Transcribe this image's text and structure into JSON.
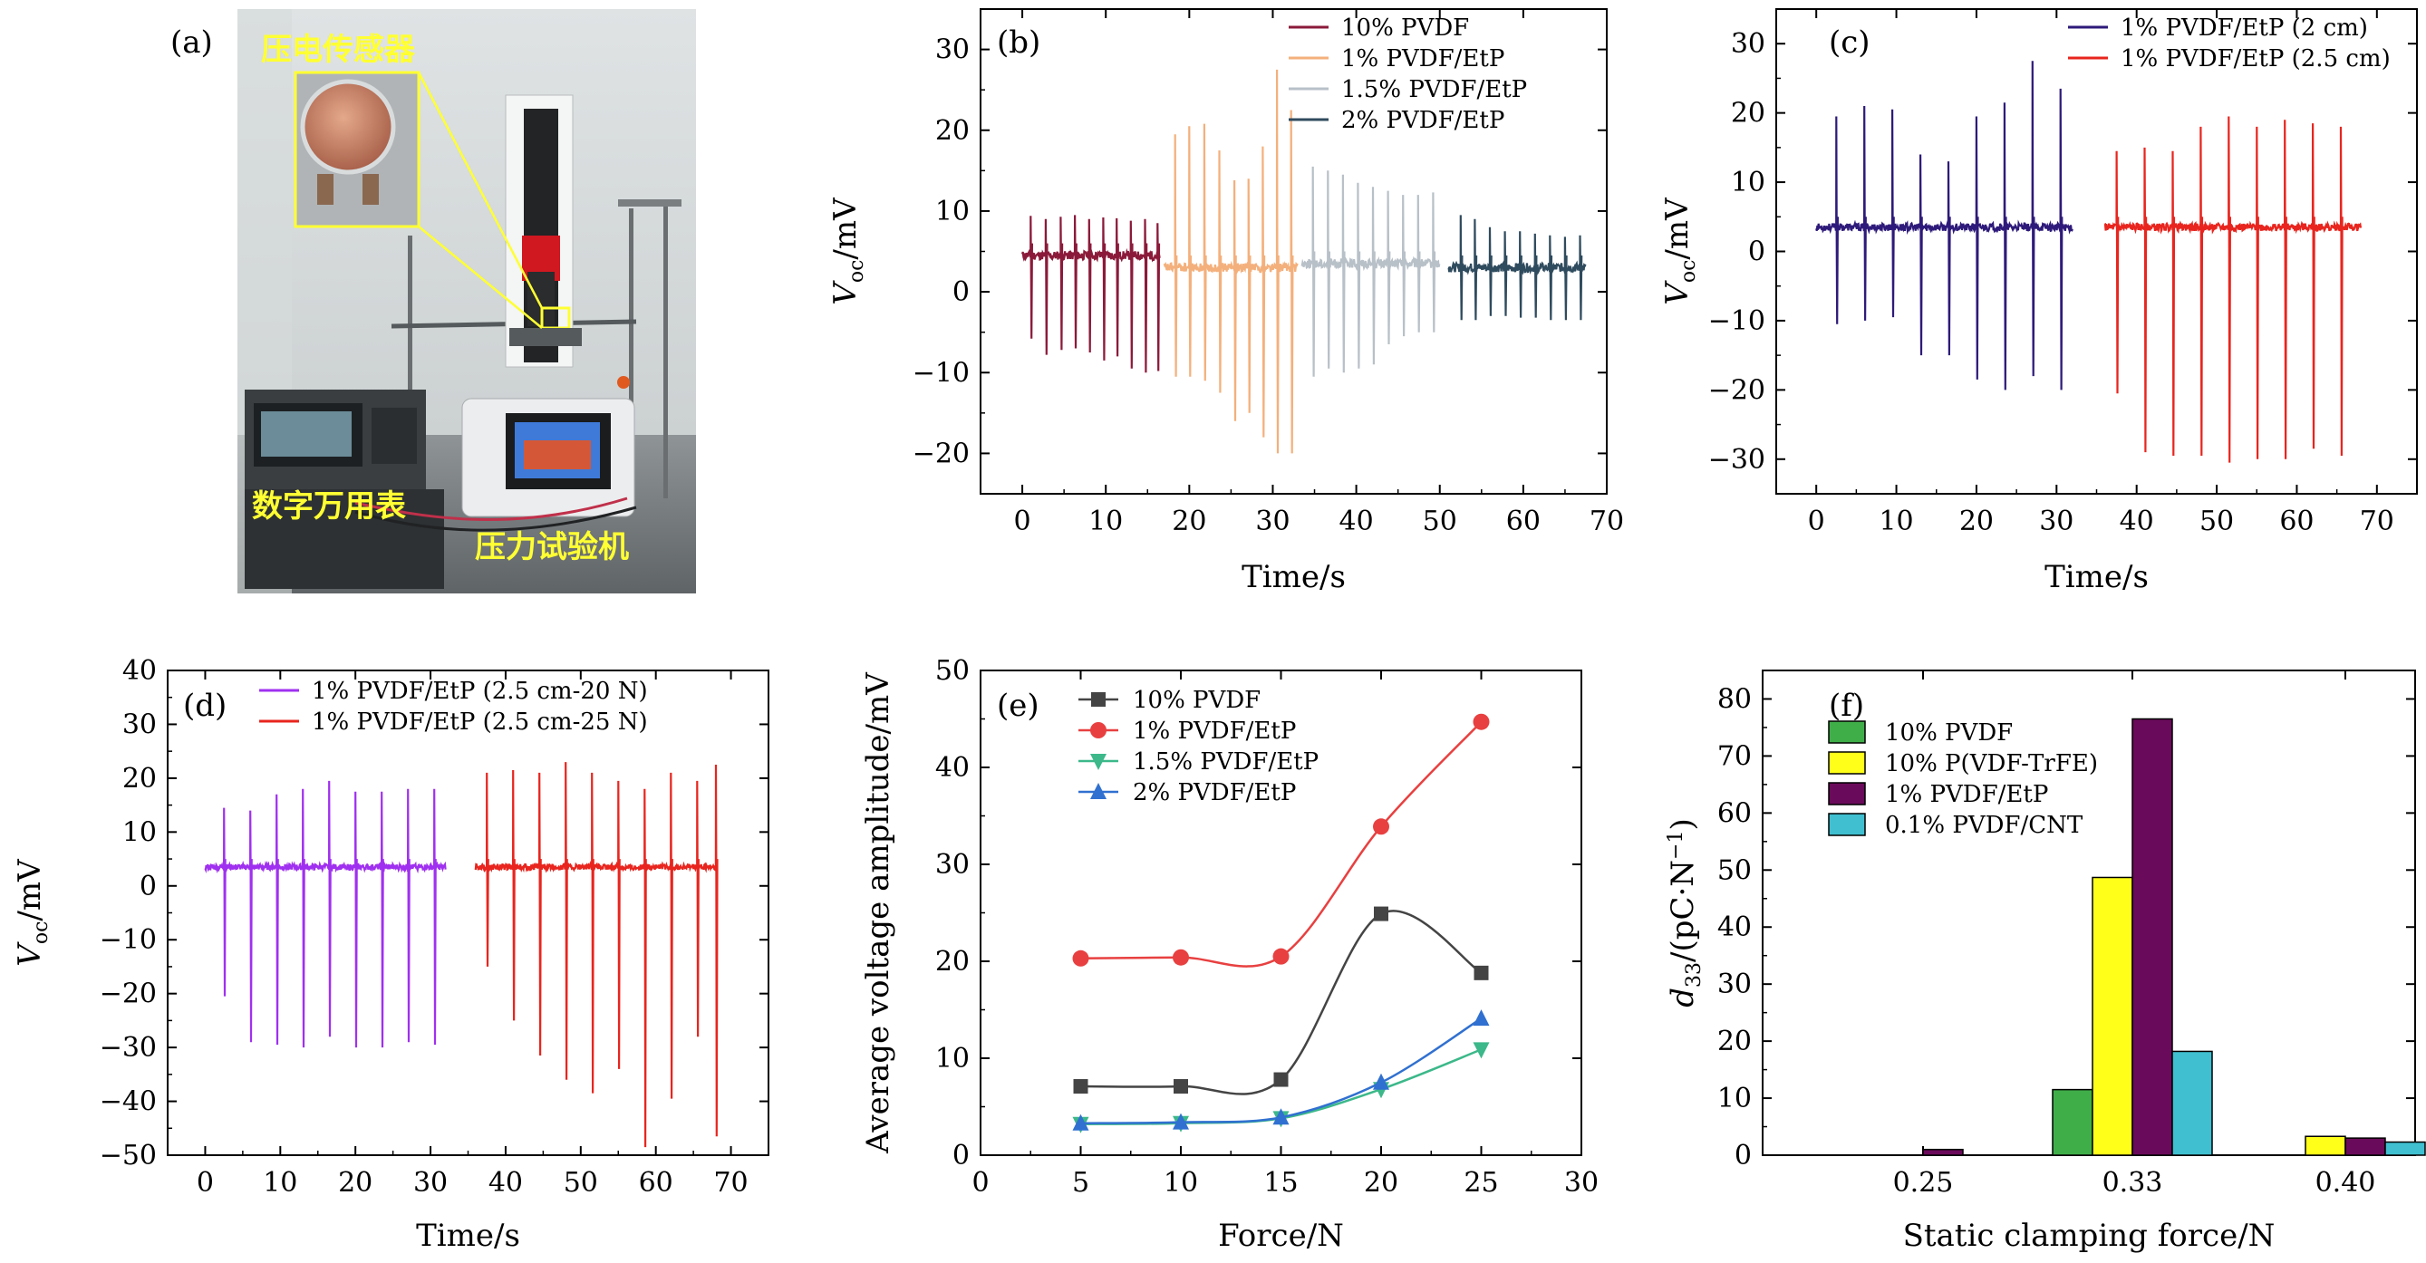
{
  "panel_a": {
    "panel_label": "(a)",
    "photo_labels": {
      "sensor": "压电传感器",
      "multimeter": "数字万用表",
      "tester": "压力试验机"
    }
  },
  "chart_data": [
    {
      "panel": "(b)",
      "type": "line",
      "xlabel": "Time/s",
      "ylabel": "V_oc/mV",
      "xlim": [
        -5,
        70
      ],
      "ylim": [
        -25,
        35
      ],
      "xticks": [
        0,
        10,
        20,
        30,
        40,
        50,
        60,
        70
      ],
      "yticks": [
        -20,
        -10,
        0,
        10,
        20,
        30
      ],
      "legend_position": "top-right",
      "series": [
        {
          "name": "10% PVDF",
          "color": "#8b1a3a",
          "x_range": [
            0,
            16.5
          ],
          "baseline": 4.5,
          "peaks": [
            {
              "t": 1.0,
              "max": 9.4,
              "min": -5.8
            },
            {
              "t": 2.8,
              "max": 9.0,
              "min": -7.8
            },
            {
              "t": 4.6,
              "max": 9.3,
              "min": -7.2
            },
            {
              "t": 6.3,
              "max": 9.5,
              "min": -7.0
            },
            {
              "t": 8.0,
              "max": 9.0,
              "min": -7.5
            },
            {
              "t": 9.7,
              "max": 9.2,
              "min": -8.5
            },
            {
              "t": 11.3,
              "max": 9.1,
              "min": -8.0
            },
            {
              "t": 13.0,
              "max": 8.8,
              "min": -9.5
            },
            {
              "t": 14.7,
              "max": 9.0,
              "min": -10.0
            },
            {
              "t": 16.2,
              "max": 8.5,
              "min": -9.8
            }
          ]
        },
        {
          "name": "1% PVDF/EtP",
          "color": "#f4b07c",
          "x_range": [
            17,
            33
          ],
          "baseline": 3.0,
          "peaks": [
            {
              "t": 18.3,
              "max": 19.5,
              "min": -10.5
            },
            {
              "t": 20.0,
              "max": 20.5,
              "min": -10.5
            },
            {
              "t": 21.8,
              "max": 20.8,
              "min": -11.0
            },
            {
              "t": 23.6,
              "max": 17.5,
              "min": -12.5
            },
            {
              "t": 25.4,
              "max": 13.8,
              "min": -16.0
            },
            {
              "t": 27.1,
              "max": 14.0,
              "min": -15.0
            },
            {
              "t": 28.8,
              "max": 18.0,
              "min": -18.0
            },
            {
              "t": 30.5,
              "max": 27.5,
              "min": -20.0
            },
            {
              "t": 32.2,
              "max": 22.5,
              "min": -20.0
            }
          ]
        },
        {
          "name": "1.5% PVDF/EtP",
          "color": "#b8c0c8",
          "x_range": [
            33.5,
            50
          ],
          "baseline": 3.5,
          "peaks": [
            {
              "t": 34.8,
              "max": 15.5,
              "min": -10.5
            },
            {
              "t": 36.6,
              "max": 15.0,
              "min": -9.5
            },
            {
              "t": 38.4,
              "max": 14.5,
              "min": -10.0
            },
            {
              "t": 40.2,
              "max": 13.5,
              "min": -9.5
            },
            {
              "t": 42.0,
              "max": 13.0,
              "min": -9.0
            },
            {
              "t": 43.8,
              "max": 12.5,
              "min": -6.5
            },
            {
              "t": 45.6,
              "max": 12.0,
              "min": -5.5
            },
            {
              "t": 47.4,
              "max": 12.0,
              "min": -5.0
            },
            {
              "t": 49.2,
              "max": 12.3,
              "min": -5.0
            }
          ]
        },
        {
          "name": "2% PVDF/EtP",
          "color": "#2f4b5e",
          "x_range": [
            51,
            67.5
          ],
          "baseline": 3.0,
          "peaks": [
            {
              "t": 52.5,
              "max": 9.5,
              "min": -3.5
            },
            {
              "t": 54.2,
              "max": 9.0,
              "min": -3.5
            },
            {
              "t": 56.0,
              "max": 8.0,
              "min": -3.0
            },
            {
              "t": 57.8,
              "max": 7.5,
              "min": -3.0
            },
            {
              "t": 59.6,
              "max": 7.5,
              "min": -3.2
            },
            {
              "t": 61.4,
              "max": 7.2,
              "min": -3.2
            },
            {
              "t": 63.2,
              "max": 7.0,
              "min": -3.5
            },
            {
              "t": 65.0,
              "max": 6.8,
              "min": -3.5
            },
            {
              "t": 66.8,
              "max": 7.0,
              "min": -3.5
            }
          ]
        }
      ]
    },
    {
      "panel": "(c)",
      "type": "line",
      "xlabel": "Time/s",
      "ylabel": "V_oc/mV",
      "xlim": [
        -5,
        75
      ],
      "ylim": [
        -35,
        35
      ],
      "xticks": [
        0,
        10,
        20,
        30,
        40,
        50,
        60,
        70
      ],
      "yticks": [
        -30,
        -20,
        -10,
        0,
        10,
        20,
        30
      ],
      "legend_position": "top-right",
      "series": [
        {
          "name": "1% PVDF/EtP (2 cm)",
          "color": "#2e1a7a",
          "x_range": [
            0,
            32
          ],
          "baseline": 3.5,
          "peaks": [
            {
              "t": 2.5,
              "max": 19.5,
              "min": -10.5
            },
            {
              "t": 6.0,
              "max": 21.0,
              "min": -10.0
            },
            {
              "t": 9.5,
              "max": 20.5,
              "min": -9.5
            },
            {
              "t": 13.0,
              "max": 14.0,
              "min": -15.0
            },
            {
              "t": 16.5,
              "max": 13.0,
              "min": -15.0
            },
            {
              "t": 20.0,
              "max": 19.5,
              "min": -18.5
            },
            {
              "t": 23.5,
              "max": 21.5,
              "min": -20.0
            },
            {
              "t": 27.0,
              "max": 27.5,
              "min": -18.0
            },
            {
              "t": 30.5,
              "max": 23.5,
              "min": -20.0
            }
          ]
        },
        {
          "name": "1% PVDF/EtP (2.5 cm)",
          "color": "#e8251e",
          "x_range": [
            36,
            68
          ],
          "baseline": 3.5,
          "peaks": [
            {
              "t": 37.5,
              "max": 14.5,
              "min": -20.5
            },
            {
              "t": 41.0,
              "max": 15.0,
              "min": -29.0
            },
            {
              "t": 44.5,
              "max": 14.5,
              "min": -29.5
            },
            {
              "t": 48.0,
              "max": 18.0,
              "min": -29.5
            },
            {
              "t": 51.5,
              "max": 19.5,
              "min": -30.5
            },
            {
              "t": 55.0,
              "max": 18.0,
              "min": -30.0
            },
            {
              "t": 58.5,
              "max": 19.0,
              "min": -30.0
            },
            {
              "t": 62.0,
              "max": 18.5,
              "min": -28.5
            },
            {
              "t": 65.5,
              "max": 18.0,
              "min": -29.5
            }
          ]
        }
      ]
    },
    {
      "panel": "(d)",
      "type": "line",
      "xlabel": "Time/s",
      "ylabel": "V_oc/mV",
      "xlim": [
        -5,
        75
      ],
      "ylim": [
        -50,
        40
      ],
      "xticks": [
        0,
        10,
        20,
        30,
        40,
        50,
        60,
        70
      ],
      "yticks": [
        -50,
        -40,
        -30,
        -20,
        -10,
        0,
        10,
        20,
        30,
        40
      ],
      "legend_position": "top-right",
      "series": [
        {
          "name": "1% PVDF/EtP (2.5 cm-20 N)",
          "color": "#a030f0",
          "x_range": [
            0,
            32
          ],
          "baseline": 3.5,
          "peaks": [
            {
              "t": 2.5,
              "max": 14.5,
              "min": -20.5
            },
            {
              "t": 6.0,
              "max": 14.0,
              "min": -29.0
            },
            {
              "t": 9.5,
              "max": 17.0,
              "min": -29.5
            },
            {
              "t": 13.0,
              "max": 18.0,
              "min": -30.0
            },
            {
              "t": 16.5,
              "max": 19.5,
              "min": -28.0
            },
            {
              "t": 20.0,
              "max": 17.5,
              "min": -30.0
            },
            {
              "t": 23.5,
              "max": 17.5,
              "min": -30.0
            },
            {
              "t": 27.0,
              "max": 18.0,
              "min": -29.0
            },
            {
              "t": 30.5,
              "max": 18.0,
              "min": -29.5
            }
          ]
        },
        {
          "name": "1% PVDF/EtP (2.5 cm-25 N)",
          "color": "#e8251e",
          "x_range": [
            36,
            68
          ],
          "baseline": 3.5,
          "peaks": [
            {
              "t": 37.5,
              "max": 21.0,
              "min": -15.0
            },
            {
              "t": 41.0,
              "max": 21.5,
              "min": -25.0
            },
            {
              "t": 44.5,
              "max": 21.0,
              "min": -31.5
            },
            {
              "t": 48.0,
              "max": 23.0,
              "min": -36.0
            },
            {
              "t": 51.5,
              "max": 21.0,
              "min": -38.5
            },
            {
              "t": 55.0,
              "max": 19.5,
              "min": -34.0
            },
            {
              "t": 58.5,
              "max": 18.0,
              "min": -48.5
            },
            {
              "t": 62.0,
              "max": 21.0,
              "min": -39.5
            },
            {
              "t": 65.5,
              "max": 19.5,
              "min": -28.0
            },
            {
              "t": 68.0,
              "max": 22.5,
              "min": -46.5
            }
          ]
        }
      ]
    },
    {
      "panel": "(e)",
      "type": "line",
      "xlabel": "Force/N",
      "ylabel": "Average voltage amplitude/mV",
      "xlim": [
        0,
        30
      ],
      "ylim": [
        0,
        50
      ],
      "xticks": [
        0,
        5,
        10,
        15,
        20,
        25,
        30
      ],
      "yticks": [
        0,
        10,
        20,
        30,
        40,
        50
      ],
      "legend_position": "top-left",
      "x": [
        5,
        10,
        15,
        20,
        25
      ],
      "series": [
        {
          "name": "10% PVDF",
          "color": "#444444",
          "marker": "square",
          "values": [
            7.1,
            7.1,
            7.8,
            24.9,
            18.8
          ]
        },
        {
          "name": "1% PVDF/EtP",
          "color": "#e84040",
          "marker": "circle",
          "values": [
            20.3,
            20.4,
            20.5,
            33.9,
            44.7
          ]
        },
        {
          "name": "1.5% PVDF/EtP",
          "color": "#3cb88a",
          "marker": "triangle-down",
          "values": [
            3.2,
            3.3,
            3.8,
            6.8,
            10.9
          ]
        },
        {
          "name": "2% PVDF/EtP",
          "color": "#3070d0",
          "marker": "triangle-up",
          "values": [
            3.3,
            3.4,
            3.9,
            7.5,
            14.1
          ]
        }
      ]
    },
    {
      "panel": "(f)",
      "type": "bar",
      "xlabel": "Static clamping force/N",
      "ylabel": "d33/(pC·N−1)",
      "ylim": [
        0,
        85
      ],
      "yticks": [
        0,
        10,
        20,
        30,
        40,
        50,
        60,
        70,
        80
      ],
      "categories": [
        "0.25",
        "0.33",
        "0.40"
      ],
      "legend_position": "top-left",
      "series": [
        {
          "name": "10% PVDF",
          "color": "#3fae49",
          "values": [
            0,
            11.5,
            0
          ]
        },
        {
          "name": "10% P(VDF-TrFE)",
          "color": "#ffff1a",
          "values": [
            0,
            48.7,
            3.3
          ]
        },
        {
          "name": "1% PVDF/EtP",
          "color": "#6a0a5a",
          "values": [
            1.0,
            76.5,
            3.0
          ]
        },
        {
          "name": "0.1% PVDF/CNT",
          "color": "#3fbfd0",
          "values": [
            0,
            18.2,
            2.3
          ]
        }
      ]
    }
  ]
}
